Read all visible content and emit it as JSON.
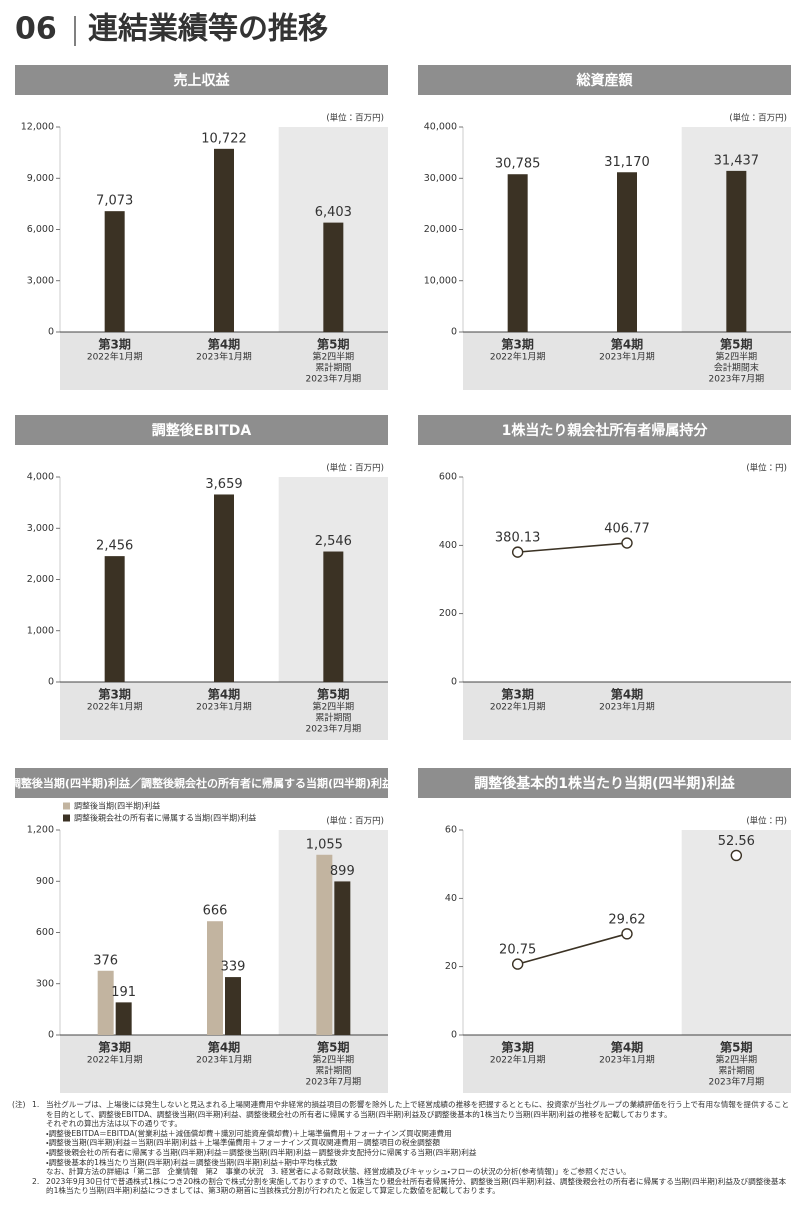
{
  "header": {
    "number": "06",
    "title": "連結業績等の推移"
  },
  "chart_data": [
    {
      "type": "bar",
      "title": "売上収益",
      "unit": "(単位：百万円)",
      "categories": [
        [
          "第3期",
          "2022年1月期"
        ],
        [
          "第4期",
          "2023年1月期"
        ],
        [
          "第5期",
          "第2四半期",
          "累計期間",
          "2023年7月期"
        ]
      ],
      "values": [
        7073,
        10722,
        6403
      ],
      "value_labels": [
        "7,073",
        "10,722",
        "6,403"
      ],
      "color": "#3b3224",
      "ylim": [
        0,
        12000
      ],
      "yticks": [
        0,
        {
          "value": 3000,
          "label": "3,000"
        },
        {
          "value": 6000,
          "label": "6,000"
        },
        {
          "value": 9000,
          "label": "9,000"
        },
        {
          "value": 12000,
          "label": "12,000"
        }
      ],
      "grid": false,
      "highlight_index": 2
    },
    {
      "type": "bar",
      "title": "総資産額",
      "unit": "(単位：百万円)",
      "categories": [
        [
          "第3期",
          "2022年1月期"
        ],
        [
          "第4期",
          "2023年1月期"
        ],
        [
          "第5期",
          "第2四半期",
          "会計期間末",
          "2023年7月期"
        ]
      ],
      "values": [
        30785,
        31170,
        31437
      ],
      "value_labels": [
        "30,785",
        "31,170",
        "31,437"
      ],
      "color": "#3b3224",
      "ylim": [
        0,
        40000
      ],
      "yticks": [
        0,
        {
          "value": 10000,
          "label": "10,000"
        },
        {
          "value": 20000,
          "label": "20,000"
        },
        {
          "value": 30000,
          "label": "30,000"
        },
        {
          "value": 40000,
          "label": "40,000"
        }
      ],
      "grid": false,
      "highlight_index": 2
    },
    {
      "type": "bar",
      "title": "調整後EBITDA",
      "unit": "(単位：百万円)",
      "categories": [
        [
          "第3期",
          "2022年1月期"
        ],
        [
          "第4期",
          "2023年1月期"
        ],
        [
          "第5期",
          "第2四半期",
          "累計期間",
          "2023年7月期"
        ]
      ],
      "values": [
        2456,
        3659,
        2546
      ],
      "value_labels": [
        "2,456",
        "3,659",
        "2,546"
      ],
      "color": "#3b3224",
      "ylim": [
        0,
        4000
      ],
      "yticks": [
        0,
        {
          "value": 1000,
          "label": "1,000"
        },
        {
          "value": 2000,
          "label": "2,000"
        },
        {
          "value": 3000,
          "label": "3,000"
        },
        {
          "value": 4000,
          "label": "4,000"
        }
      ],
      "grid": false,
      "highlight_index": 2
    },
    {
      "type": "line",
      "title": "1株当たり親会社所有者帰属持分",
      "unit": "(単位：円)",
      "categories": [
        [
          "第3期",
          "2022年1月期"
        ],
        [
          "第4期",
          "2023年1月期"
        ],
        null
      ],
      "values": [
        380.13,
        406.77,
        null
      ],
      "color": "#3b3224",
      "ylim": [
        0,
        600
      ],
      "yticks": [
        0,
        200,
        400,
        600
      ],
      "grid": false
    },
    {
      "type": "bar",
      "title": "調整後当期(四半期)利益／調整後親会社の所有者に帰属する当期(四半期)利益",
      "unit": "(単位：百万円)",
      "categories": [
        [
          "第3期",
          "2022年1月期"
        ],
        [
          "第4期",
          "2023年1月期"
        ],
        [
          "第5期",
          "第2四半期",
          "累計期間",
          "2023年7月期"
        ]
      ],
      "series": [
        {
          "name": "調整後当期(四半期)利益",
          "color": "#c2b4a0",
          "values": [
            376,
            666,
            1055
          ],
          "value_labels": [
            "376",
            "666",
            "1,055"
          ]
        },
        {
          "name": "調整後親会社の所有者に帰属する当期(四半期)利益",
          "color": "#3b3224",
          "values": [
            191,
            339,
            899
          ]
        }
      ],
      "ylim": [
        0,
        1200
      ],
      "yticks": [
        0,
        300,
        600,
        900,
        {
          "value": 1200,
          "label": "1,200"
        }
      ],
      "grid": false,
      "legend": "top-left",
      "highlight_index": 2
    },
    {
      "type": "line",
      "title": "調整後基本的1株当たり当期(四半期)利益",
      "unit": "(単位：円)",
      "categories": [
        [
          "第3期",
          "2022年1月期"
        ],
        [
          "第4期",
          "2023年1月期"
        ],
        [
          "第5期",
          "第2四半期",
          "累計期間",
          "2023年7月期"
        ]
      ],
      "values": [
        20.75,
        29.62,
        52.56
      ],
      "color": "#3b3224",
      "ylim": [
        0,
        60
      ],
      "yticks": [
        0,
        20,
        40,
        60
      ],
      "grid": false,
      "highlight_index": 2
    }
  ],
  "notes": {
    "label": "(注)",
    "items": [
      {
        "number": "1.",
        "lines": [
          "当社グループは、上場後には発生しないと見込まれる上場関連費用や非経常的損益項目の影響を除外した上で経営成績の推移を把握するとともに、投資家が当社グループの業績評価を行う上で有用な情報を提供することを目的として、調整後EBITDA、調整後当期(四半期)利益、調整後親会社の所有者に帰属する当期(四半期)利益及び調整後基本的1株当たり当期(四半期)利益の推移を記載しております。",
          "それぞれの算出方法は以下の通りです。",
          "・調整後EBITDA＝EBITDA(営業利益＋減価償却費＋識別可能資産償却費)＋上場準備費用＋フォーナインズ買収関連費用",
          "・調整後当期(四半期)利益＝当期(四半期)利益＋上場準備費用＋フォーナインズ買収関連費用－調整項目の税金調整額",
          "・調整後親会社の所有者に帰属する当期(四半期)利益＝調整後当期(四半期)利益－調整後非支配持分に帰属する当期(四半期)利益",
          "・調整後基本的1株当たり当期(四半期)利益＝調整後当期(四半期)利益÷期中平均株式数",
          "なお、計算方法の詳細は「第二部　企業情報　第2　事業の状況　3. 経営者による財政状態、経営成績及びキャッシュ・フローの状況の分析(参考情報)」をご参照ください。"
        ]
      },
      {
        "number": "2.",
        "lines": [
          "2023年9月30日付で普通株式1株につき20株の割合で株式分割を実施しておりますので、1株当たり親会社所有者帰属持分、調整後当期(四半期)利益、調整後親会社の所有者に帰属する当期(四半期)利益及び調整後基本的1株当たり当期(四半期)利益につきましては、第3期の期首に当該株式分割が行われたと仮定して算定した数値を記載しております。"
        ]
      }
    ]
  }
}
